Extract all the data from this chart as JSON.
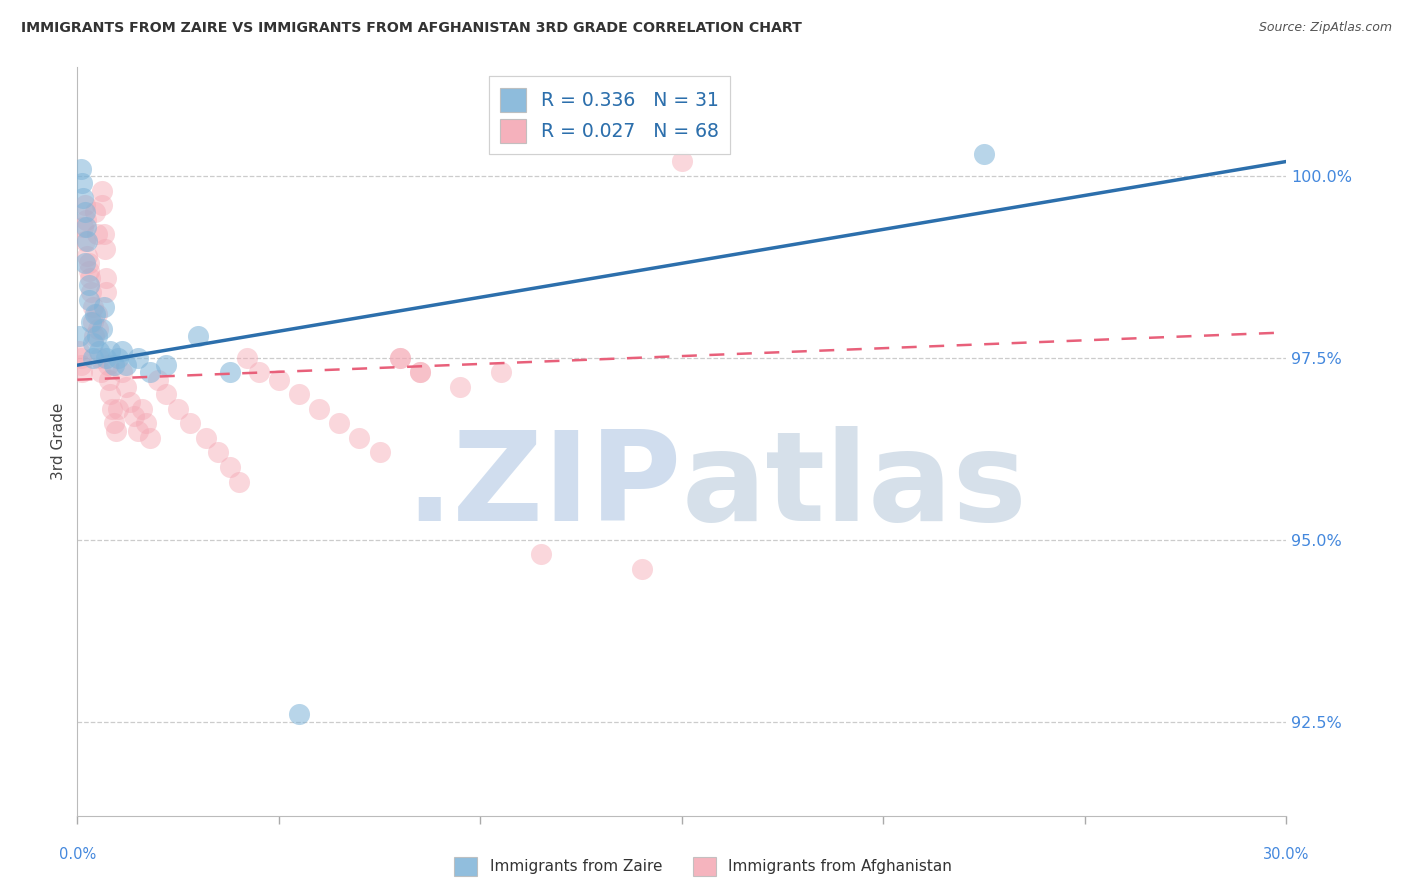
{
  "title": "IMMIGRANTS FROM ZAIRE VS IMMIGRANTS FROM AFGHANISTAN 3RD GRADE CORRELATION CHART",
  "source": "Source: ZipAtlas.com",
  "ylabel": "3rd Grade",
  "xlim": [
    0.0,
    30.0
  ],
  "ylim": [
    91.2,
    101.5
  ],
  "ytick_vals": [
    92.5,
    95.0,
    97.5,
    100.0
  ],
  "blue_color": "#7EB3D8",
  "pink_color": "#F4A7B3",
  "blue_line_color": "#2C6FAC",
  "pink_line_color": "#E8607A",
  "legend1_label": "R = 0.336   N = 31",
  "legend2_label": "R = 0.027   N = 68",
  "legend_label1": "Immigrants from Zaire",
  "legend_label2": "Immigrants from Afghanistan",
  "watermark_zip": ".ZIP",
  "watermark_atlas": "atlas",
  "blue_x": [
    0.05,
    0.1,
    0.12,
    0.15,
    0.18,
    0.2,
    0.22,
    0.25,
    0.28,
    0.3,
    0.35,
    0.38,
    0.4,
    0.45,
    0.5,
    0.55,
    0.6,
    0.65,
    0.7,
    0.8,
    0.9,
    1.0,
    1.1,
    1.2,
    1.5,
    1.8,
    2.2,
    3.0,
    3.8,
    5.5,
    22.5
  ],
  "blue_y": [
    97.8,
    100.1,
    99.9,
    99.7,
    99.5,
    98.8,
    99.3,
    99.1,
    98.5,
    98.3,
    98.0,
    97.7,
    97.5,
    98.1,
    97.8,
    97.6,
    97.9,
    98.2,
    97.5,
    97.6,
    97.4,
    97.5,
    97.6,
    97.4,
    97.5,
    97.3,
    97.4,
    97.8,
    97.3,
    92.6,
    100.3
  ],
  "pink_x": [
    0.05,
    0.08,
    0.1,
    0.12,
    0.15,
    0.18,
    0.2,
    0.22,
    0.25,
    0.28,
    0.3,
    0.32,
    0.35,
    0.38,
    0.4,
    0.42,
    0.45,
    0.48,
    0.5,
    0.52,
    0.55,
    0.58,
    0.6,
    0.62,
    0.65,
    0.68,
    0.7,
    0.72,
    0.75,
    0.78,
    0.8,
    0.85,
    0.9,
    0.95,
    1.0,
    1.1,
    1.2,
    1.3,
    1.4,
    1.5,
    1.6,
    1.7,
    1.8,
    2.0,
    2.2,
    2.5,
    2.8,
    3.2,
    3.5,
    3.8,
    4.0,
    4.2,
    4.5,
    5.0,
    5.5,
    6.0,
    6.5,
    7.0,
    7.5,
    8.0,
    8.5,
    9.5,
    10.5,
    11.5,
    14.0,
    15.0,
    8.0,
    8.5
  ],
  "pink_y": [
    97.6,
    97.4,
    97.5,
    97.3,
    99.3,
    99.1,
    99.6,
    99.4,
    98.9,
    98.7,
    98.8,
    98.6,
    98.4,
    98.2,
    98.0,
    97.8,
    99.5,
    99.2,
    98.1,
    97.9,
    97.5,
    97.3,
    99.8,
    99.6,
    99.2,
    99.0,
    98.6,
    98.4,
    97.4,
    97.2,
    97.0,
    96.8,
    96.6,
    96.5,
    96.8,
    97.3,
    97.1,
    96.9,
    96.7,
    96.5,
    96.8,
    96.6,
    96.4,
    97.2,
    97.0,
    96.8,
    96.6,
    96.4,
    96.2,
    96.0,
    95.8,
    97.5,
    97.3,
    97.2,
    97.0,
    96.8,
    96.6,
    96.4,
    96.2,
    97.5,
    97.3,
    97.1,
    97.3,
    94.8,
    94.6,
    100.2,
    97.5,
    97.3
  ]
}
